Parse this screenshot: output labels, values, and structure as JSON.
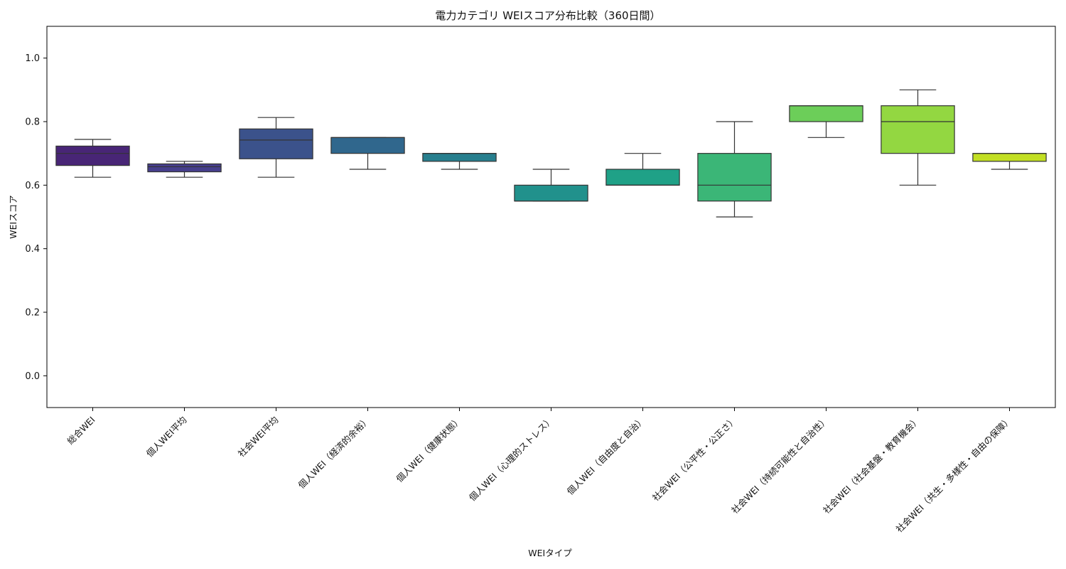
{
  "chart_data": {
    "type": "box",
    "title": "電力カテゴリ WEIスコア分布比較（360日間）",
    "xlabel": "WEIタイプ",
    "ylabel": "WEIスコア",
    "ylim": [
      -0.1,
      1.1
    ],
    "yticks": [
      "0.0",
      "0.2",
      "0.4",
      "0.6",
      "0.8",
      "1.0"
    ],
    "grid": false,
    "legend": "none",
    "categories": [
      "総合WEI",
      "個人WEI平均",
      "社会WEI平均",
      "個人WEI（経済的余裕）",
      "個人WEI（健康状態）",
      "個人WEI（心理的ストレス）",
      "個人WEI（自由度と自治）",
      "社会WEI（公平性・公正さ）",
      "社会WEI（持続可能性と自治性）",
      "社会WEI（社会基盤・教育機会）",
      "社会WEI（共生・多様性・自由の保障）"
    ],
    "boxes": [
      {
        "whisker_low": 0.625,
        "q1": 0.662,
        "median": 0.7,
        "q3": 0.723,
        "whisker_high": 0.744
      },
      {
        "whisker_low": 0.625,
        "q1": 0.642,
        "median": 0.658,
        "q3": 0.667,
        "whisker_high": 0.675
      },
      {
        "whisker_low": 0.625,
        "q1": 0.683,
        "median": 0.742,
        "q3": 0.777,
        "whisker_high": 0.813
      },
      {
        "whisker_low": 0.65,
        "q1": 0.7,
        "median": 0.75,
        "q3": 0.75,
        "whisker_high": 0.75
      },
      {
        "whisker_low": 0.65,
        "q1": 0.675,
        "median": 0.7,
        "q3": 0.7,
        "whisker_high": 0.7
      },
      {
        "whisker_low": 0.55,
        "q1": 0.55,
        "median": 0.55,
        "q3": 0.6,
        "whisker_high": 0.65
      },
      {
        "whisker_low": 0.6,
        "q1": 0.6,
        "median": 0.6,
        "q3": 0.65,
        "whisker_high": 0.7
      },
      {
        "whisker_low": 0.5,
        "q1": 0.55,
        "median": 0.6,
        "q3": 0.7,
        "whisker_high": 0.8
      },
      {
        "whisker_low": 0.75,
        "q1": 0.8,
        "median": 0.85,
        "q3": 0.85,
        "whisker_high": 0.85
      },
      {
        "whisker_low": 0.6,
        "q1": 0.7,
        "median": 0.8,
        "q3": 0.85,
        "whisker_high": 0.9
      },
      {
        "whisker_low": 0.65,
        "q1": 0.675,
        "median": 0.7,
        "q3": 0.7,
        "whisker_high": 0.7
      }
    ],
    "colors": [
      "#482576",
      "#463f8c",
      "#3b528b",
      "#30678d",
      "#277f8e",
      "#21918c",
      "#1fa187",
      "#3bb677",
      "#6cce59",
      "#93d741",
      "#c2df23"
    ]
  }
}
